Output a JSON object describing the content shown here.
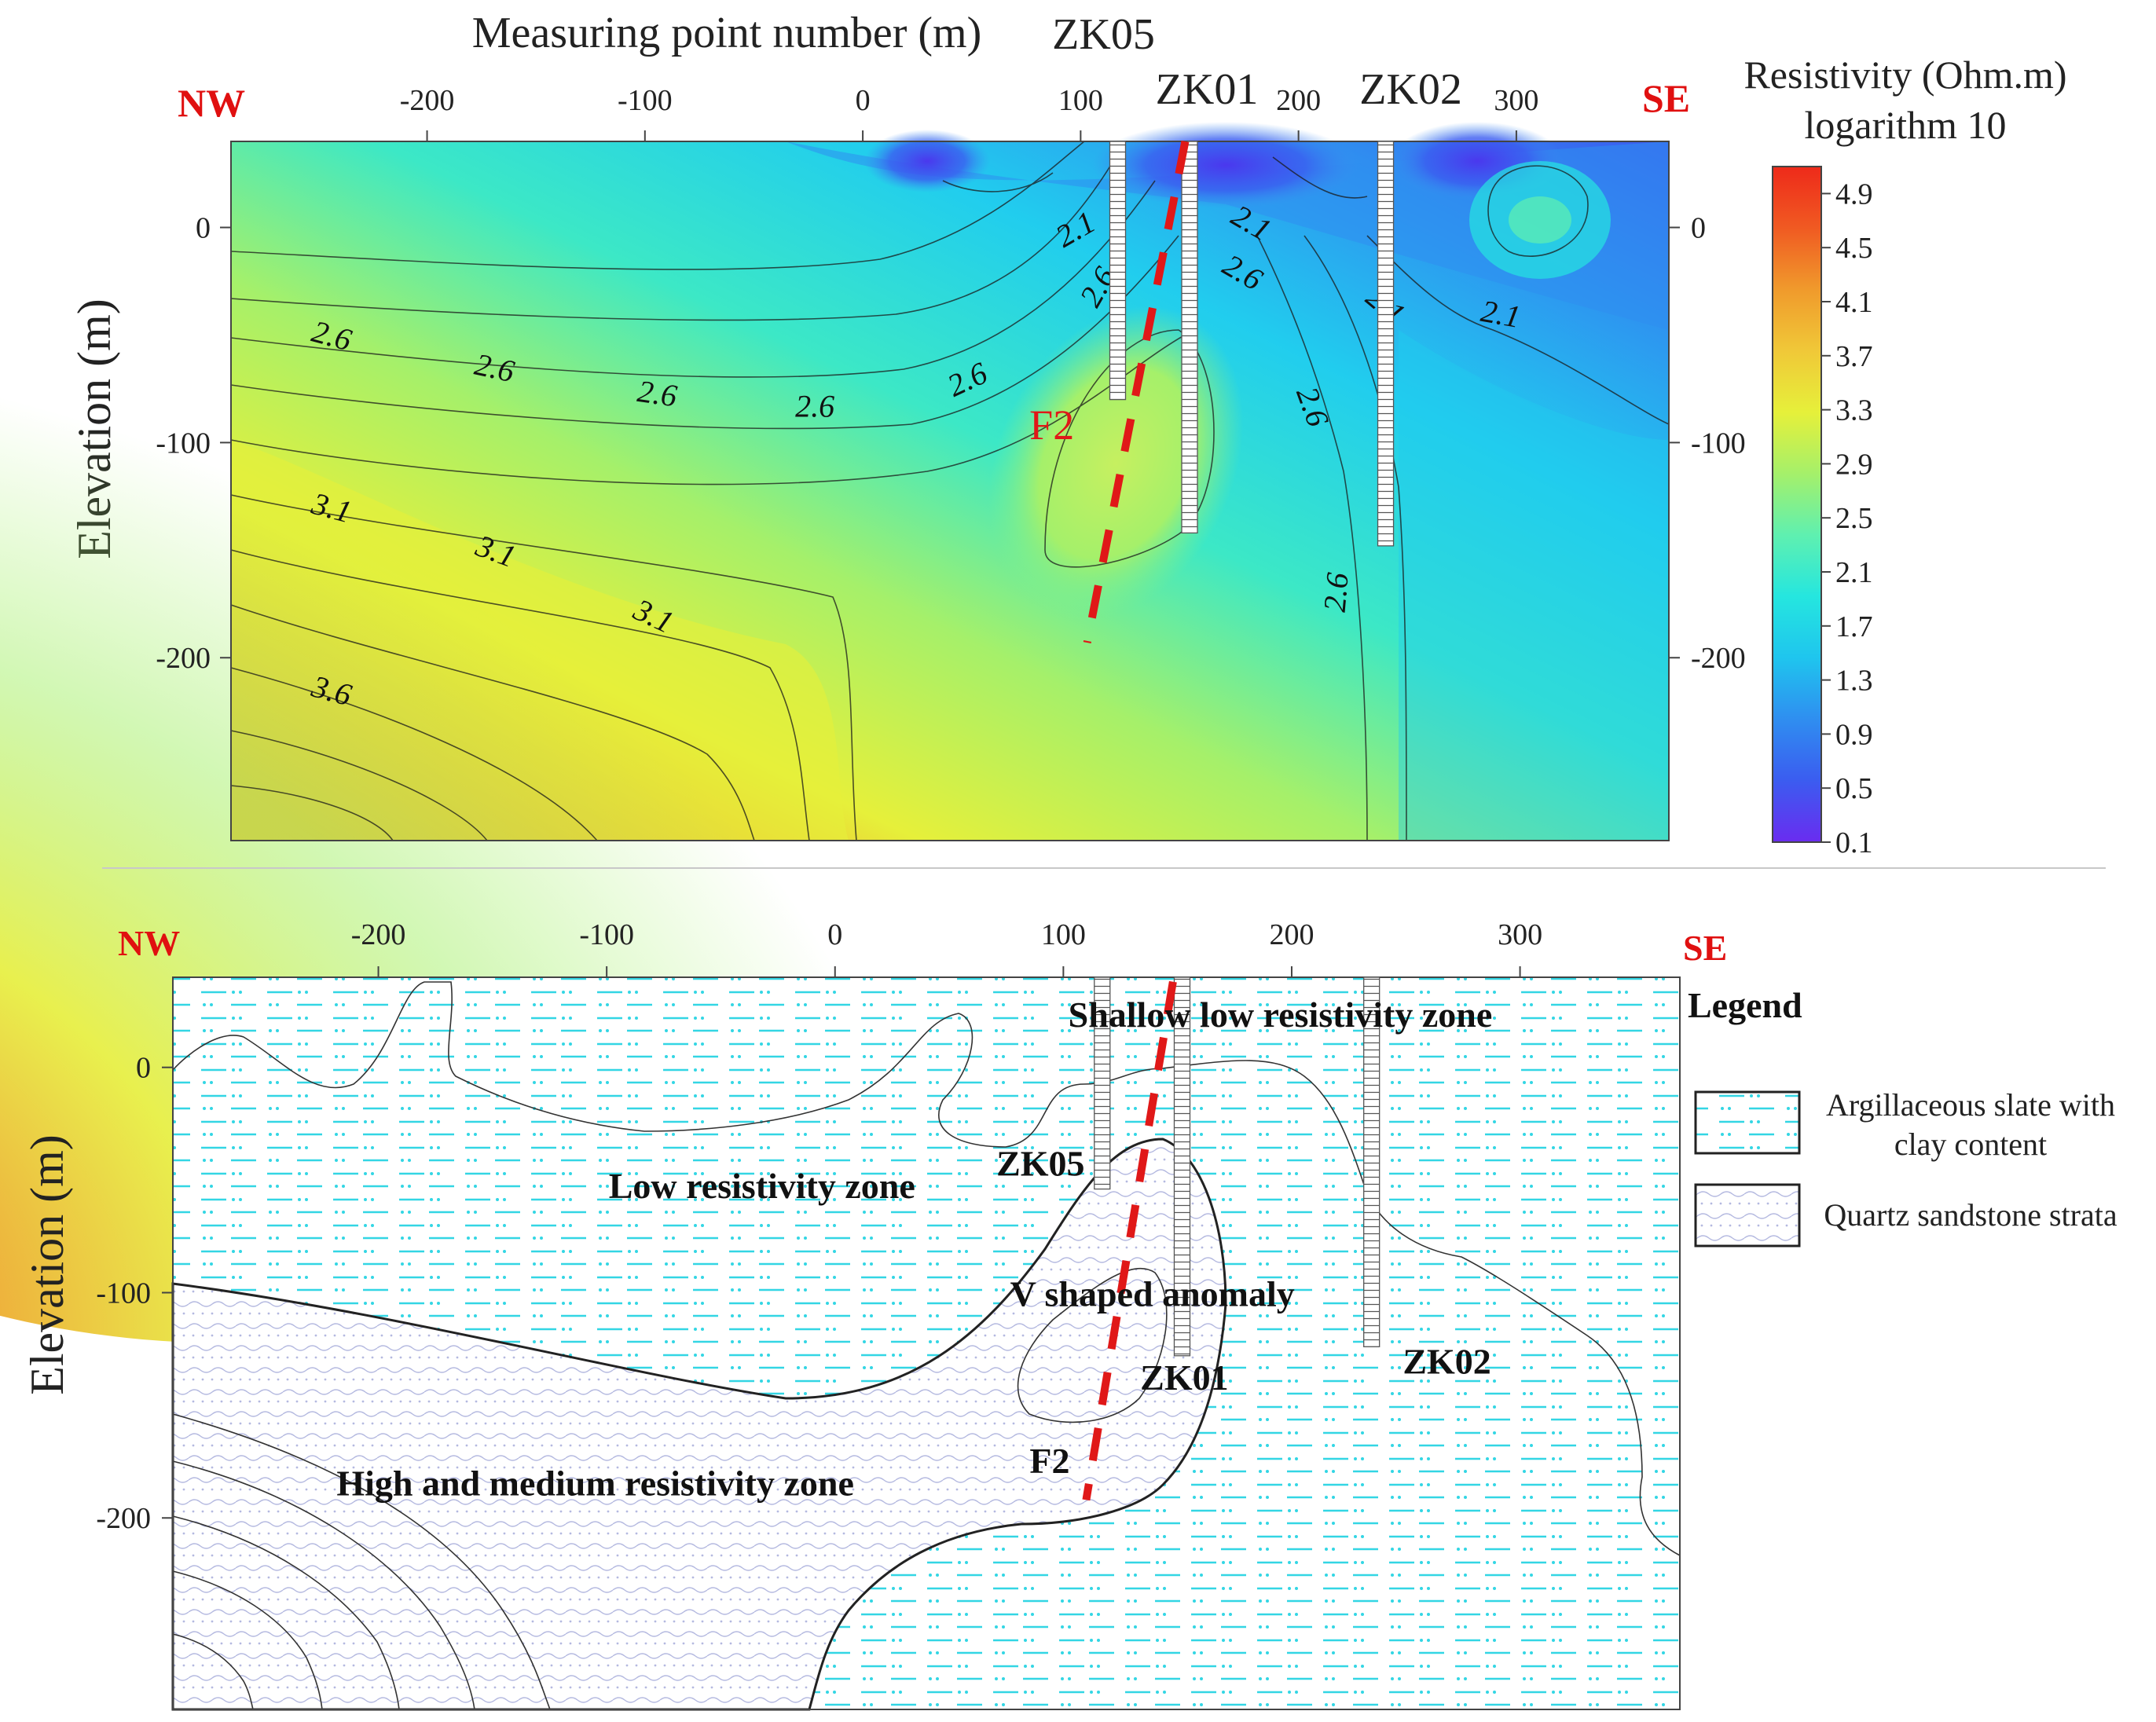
{
  "chart_data": [
    {
      "type": "heatmap",
      "xlabel": "Measuring point number (m)",
      "ylabel": "Elevation (m)",
      "x_ticks": [
        -200,
        -100,
        0,
        100,
        200,
        300
      ],
      "y_ticks": [
        0,
        -100,
        -200
      ],
      "xlim": [
        -290,
        370
      ],
      "ylim": [
        -285,
        40
      ],
      "direction_left": "NW",
      "direction_right": "SE",
      "colorbar": {
        "title_line1": "Resistivity (Ohm.m)",
        "title_line2": "logarithm 10",
        "ticks": [
          "4.9",
          "4.5",
          "4.1",
          "3.7",
          "3.3",
          "2.9",
          "2.5",
          "2.1",
          "1.7",
          "1.3",
          "0.9",
          "0.5",
          "0.1"
        ],
        "range": [
          0.1,
          5.1
        ],
        "colors": [
          "#6a2cf0",
          "#3b5cf0",
          "#2f8ef0",
          "#1fc5ee",
          "#25e6df",
          "#5ff0b0",
          "#a5f06a",
          "#e6f03a",
          "#f0c838",
          "#f09a2c",
          "#f05a22",
          "#ee2a1a"
        ]
      },
      "boreholes": [
        {
          "name": "ZK05",
          "x": 117,
          "top": 40,
          "bottom": -80
        },
        {
          "name": "ZK01",
          "x": 150,
          "top": 40,
          "bottom": -142
        },
        {
          "name": "ZK02",
          "x": 240,
          "top": 40,
          "bottom": -148
        }
      ],
      "fault": {
        "name": "F2",
        "from": [
          148,
          40
        ],
        "to": [
          103,
          -193
        ]
      },
      "contour_labels": [
        {
          "text": "2.6",
          "x": -245,
          "y": -55,
          "rot": 15
        },
        {
          "text": "2.6",
          "x": -170,
          "y": -70,
          "rot": 12
        },
        {
          "text": "2.6",
          "x": -95,
          "y": -82,
          "rot": 8
        },
        {
          "text": "2.6",
          "x": -22,
          "y": -88,
          "rot": 0
        },
        {
          "text": "2.6",
          "x": 50,
          "y": -75,
          "rot": -25
        },
        {
          "text": "2.6",
          "x": 112,
          "y": -30,
          "rot": -60
        },
        {
          "text": "2.6",
          "x": 172,
          "y": -25,
          "rot": 30
        },
        {
          "text": "2.6",
          "x": 202,
          "y": -85,
          "rot": 70
        },
        {
          "text": "2.6",
          "x": 222,
          "y": -170,
          "rot": -85
        },
        {
          "text": "2.1",
          "x": 100,
          "y": -5,
          "rot": -30
        },
        {
          "text": "2.1",
          "x": 176,
          "y": -2,
          "rot": 30
        },
        {
          "text": "2.1",
          "x": 237,
          "y": -40,
          "rot": 40
        },
        {
          "text": "2.1",
          "x": 292,
          "y": -45,
          "rot": 10
        },
        {
          "text": "3.1",
          "x": -245,
          "y": -135,
          "rot": 15
        },
        {
          "text": "3.1",
          "x": -170,
          "y": -155,
          "rot": 20
        },
        {
          "text": "3.1",
          "x": -98,
          "y": -185,
          "rot": 25
        },
        {
          "text": "3.6",
          "x": -245,
          "y": -220,
          "rot": 15
        }
      ]
    },
    {
      "type": "diagram",
      "ylabel": "Elevation (m)",
      "x_ticks": [
        -200,
        -100,
        0,
        100,
        200,
        300
      ],
      "y_ticks": [
        0,
        -100,
        -200
      ],
      "xlim": [
        -290,
        370
      ],
      "ylim": [
        -285,
        40
      ],
      "direction_left": "NW",
      "direction_right": "SE",
      "zone_labels": [
        {
          "text": "Shallow low resistivity zone",
          "x": 195,
          "y": 18
        },
        {
          "text": "Low resistivity zone",
          "x": -32,
          "y": -58
        },
        {
          "text": "V shaped anomaly",
          "x": 139,
          "y": -106
        },
        {
          "text": "High and medium resistivity zone",
          "x": -105,
          "y": -190
        }
      ],
      "boreholes": [
        {
          "name": "ZK05",
          "x": 117,
          "top": 40,
          "bottom": -54,
          "label_x": 90,
          "label_y": -48
        },
        {
          "name": "ZK01",
          "x": 152,
          "top": 40,
          "bottom": -128,
          "label_x": 153,
          "label_y": -143
        },
        {
          "name": "ZK02",
          "x": 235,
          "top": 40,
          "bottom": -124,
          "label_x": 268,
          "label_y": -136
        },
        {
          "name": "F2",
          "x": 0,
          "top": 0,
          "bottom": 0,
          "label_x": 94,
          "label_y": -180
        }
      ],
      "fault": {
        "name": "F2",
        "from": [
          148,
          38
        ],
        "to": [
          110,
          -192
        ]
      },
      "legend": {
        "title": "Legend",
        "items": [
          {
            "line1": "Argillaceous slate with",
            "line2": "clay content",
            "pattern": "dash-dot"
          },
          {
            "line1": "Quartz sandstone strata",
            "line2": "",
            "pattern": "wave"
          }
        ]
      }
    }
  ]
}
